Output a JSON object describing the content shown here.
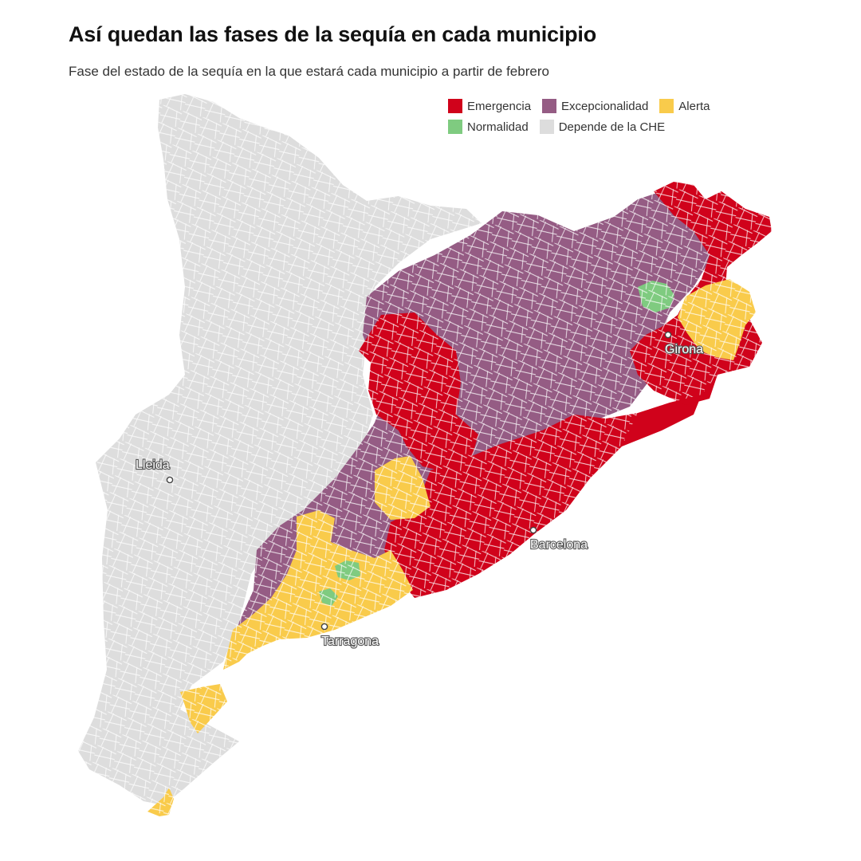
{
  "header": {
    "title": "Así quedan las fases de la sequía en cada municipio",
    "subtitle": "Fase del estado de la sequía en la que estará cada municipio a partir de febrero"
  },
  "legend": [
    [
      {
        "label": "Emergencia",
        "color": "#d0021b"
      },
      {
        "label": "Excepcionalidad",
        "color": "#955c84"
      },
      {
        "label": "Alerta",
        "color": "#f9cb4b"
      }
    ],
    [
      {
        "label": "Normalidad",
        "color": "#7fcb80"
      },
      {
        "label": "Depende de la CHE",
        "color": "#dddddd"
      }
    ]
  ],
  "cities": {
    "lleida": "Lleida",
    "girona": "Girona",
    "barcelona": "Barcelona",
    "tarragona": "Tarragona"
  },
  "map_colors": {
    "emergencia": "#d0021b",
    "excepcionalidad": "#955c84",
    "alerta": "#f9cb4b",
    "normalidad": "#7fcb80",
    "che": "#dddddd",
    "border": "#ffffff"
  }
}
